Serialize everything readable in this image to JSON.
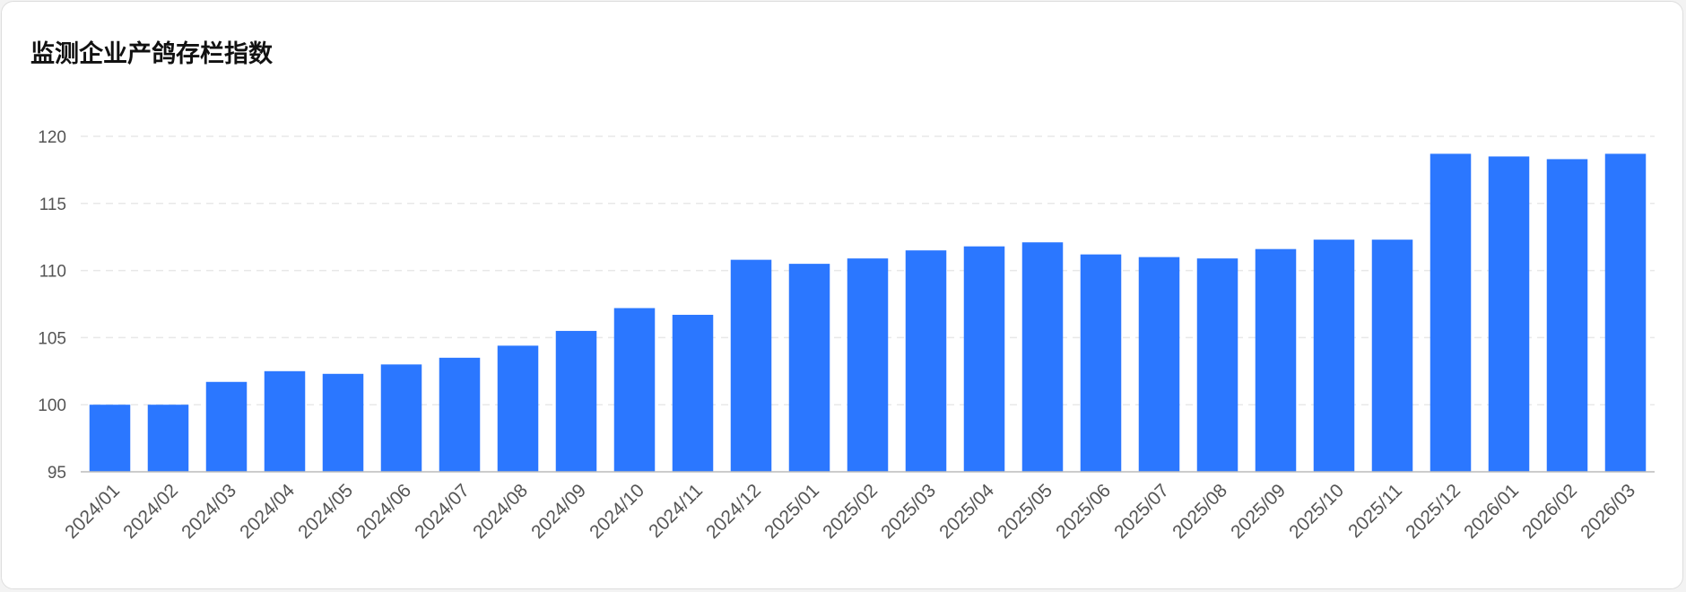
{
  "chart_data": {
    "type": "bar",
    "title": "监测企业产鸽存栏指数",
    "categories": [
      "2024/01",
      "2024/02",
      "2024/03",
      "2024/04",
      "2024/05",
      "2024/06",
      "2024/07",
      "2024/08",
      "2024/09",
      "2024/10",
      "2024/11",
      "2024/12",
      "2025/01",
      "2025/02",
      "2025/03",
      "2025/04",
      "2025/05",
      "2025/06",
      "2025/07",
      "2025/08",
      "2025/09",
      "2025/10",
      "2025/11",
      "2025/12",
      "2026/01",
      "2026/02",
      "2026/03"
    ],
    "values": [
      100.0,
      100.0,
      101.7,
      102.5,
      102.3,
      103.0,
      103.5,
      104.4,
      105.5,
      107.2,
      106.7,
      110.8,
      110.5,
      110.9,
      111.5,
      111.8,
      112.1,
      111.2,
      111.0,
      110.9,
      111.6,
      112.3,
      112.3,
      118.7,
      118.5,
      118.3,
      118.7
    ],
    "yticks": [
      95,
      100,
      105,
      110,
      115,
      120
    ],
    "ylim": [
      95,
      120
    ],
    "xlabel": "",
    "ylabel": "",
    "grid": true,
    "legend": "none",
    "bar_color": "#2b77ff",
    "grid_color": "#e8e8e8",
    "axis_color": "#bbbbbb"
  }
}
